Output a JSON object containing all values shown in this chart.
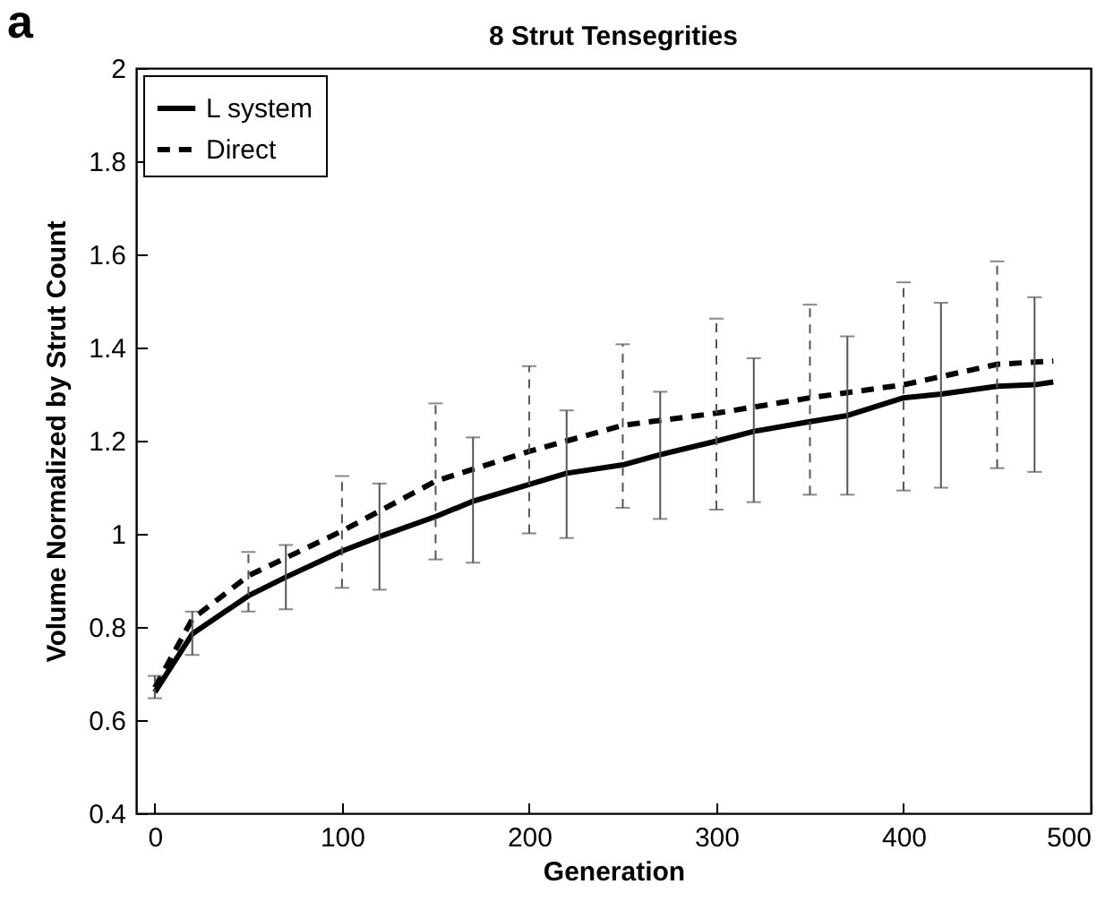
{
  "chart_data": {
    "type": "line",
    "title": "8 Strut Tensegrities",
    "xlabel": "Generation",
    "ylabel": "Volume Normalized by Strut Count",
    "annotations": [
      "a"
    ],
    "xlim": [
      -10,
      500
    ],
    "xticks": [
      0,
      100,
      200,
      300,
      400,
      500
    ],
    "ylim": [
      0.4,
      2
    ],
    "yticks": [
      0.4,
      0.6,
      0.8,
      1,
      1.2,
      1.4,
      1.6,
      1.8,
      2
    ],
    "grid": false,
    "legend": "top left",
    "marker": "none",
    "series": [
      {
        "name": "L system",
        "color": "#000000",
        "line_style": "solid",
        "x": [
          0,
          20,
          50,
          70,
          100,
          120,
          150,
          170,
          200,
          220,
          250,
          270,
          300,
          320,
          350,
          370,
          400,
          420,
          450,
          470,
          480
        ],
        "values": [
          0.66,
          0.785,
          0.867,
          0.907,
          0.963,
          0.994,
          1.037,
          1.07,
          1.106,
          1.13,
          1.148,
          1.17,
          1.199,
          1.22,
          1.241,
          1.254,
          1.292,
          1.3,
          1.317,
          1.32,
          1.326
        ],
        "errors": [
          null,
          [
            0.74,
            0.833
          ],
          null,
          [
            0.838,
            0.976
          ],
          null,
          [
            0.88,
            1.108
          ],
          null,
          [
            0.938,
            1.207
          ],
          null,
          [
            0.991,
            1.265
          ],
          null,
          [
            1.032,
            1.305
          ],
          null,
          [
            1.068,
            1.377
          ],
          null,
          [
            1.084,
            1.424
          ],
          null,
          [
            1.099,
            1.496
          ],
          null,
          [
            1.133,
            1.508
          ],
          null
        ]
      },
      {
        "name": "Direct",
        "color": "#000000",
        "line_style": "dashed",
        "x": [
          0,
          20,
          50,
          100,
          150,
          200,
          250,
          300,
          350,
          400,
          450,
          480
        ],
        "values": [
          0.67,
          0.817,
          0.91,
          1.006,
          1.113,
          1.177,
          1.233,
          1.259,
          1.292,
          1.32,
          1.364,
          1.371
        ],
        "errors": [
          [
            0.647,
            0.695
          ],
          null,
          [
            0.833,
            0.961
          ],
          [
            0.884,
            1.124
          ],
          [
            0.945,
            1.28
          ],
          [
            1.001,
            1.36
          ],
          [
            1.056,
            1.407
          ],
          [
            1.052,
            1.462
          ],
          [
            1.084,
            1.492
          ],
          [
            1.093,
            1.54
          ],
          [
            1.141,
            1.585
          ],
          null
        ]
      }
    ]
  }
}
